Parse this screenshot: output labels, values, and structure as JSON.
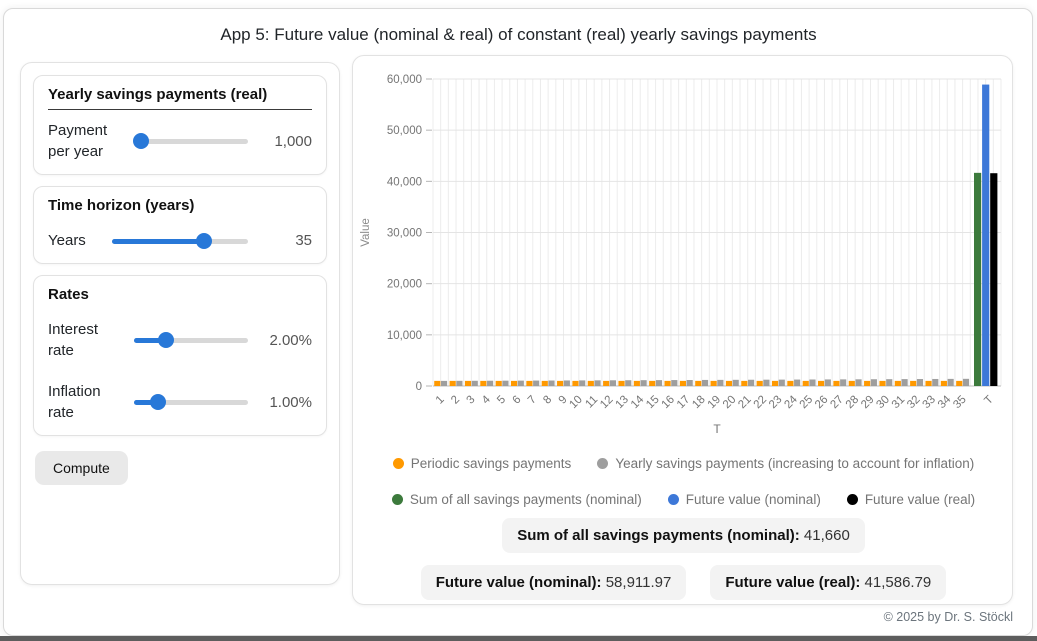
{
  "app": {
    "title": "App 5: Future value (nominal & real) of constant (real) yearly savings payments",
    "footer": "© 2025 by Dr. S. Stöckl"
  },
  "sidebar": {
    "card1": {
      "title": "Yearly savings payments (real)",
      "label": "Payment per year",
      "value": "1,000",
      "pct": 6
    },
    "card2": {
      "title": "Time horizon (years)",
      "label": "Years",
      "value": "35",
      "pct": 68
    },
    "card3": {
      "title": "Rates",
      "rows": [
        {
          "label": "Interest rate",
          "value": "2.00%",
          "pct": 28
        },
        {
          "label": "Inflation rate",
          "value": "1.00%",
          "pct": 21
        }
      ]
    },
    "compute_label": "Compute"
  },
  "chart_data": {
    "type": "bar",
    "title": "",
    "xlabel": "T",
    "ylabel": "Value",
    "ylim": [
      0,
      60000
    ],
    "yticks": [
      0,
      10000,
      20000,
      30000,
      40000,
      50000,
      60000
    ],
    "grid": true,
    "year_categories": [
      1,
      2,
      3,
      4,
      5,
      6,
      7,
      8,
      9,
      10,
      11,
      12,
      13,
      14,
      15,
      16,
      17,
      18,
      19,
      20,
      21,
      22,
      23,
      24,
      25,
      26,
      27,
      28,
      29,
      30,
      31,
      32,
      33,
      34,
      35
    ],
    "t_category": "T",
    "series": [
      {
        "name": "Periodic savings payments",
        "color": "#ff9900",
        "values": [
          1000,
          1000,
          1000,
          1000,
          1000,
          1000,
          1000,
          1000,
          1000,
          1000,
          1000,
          1000,
          1000,
          1000,
          1000,
          1000,
          1000,
          1000,
          1000,
          1000,
          1000,
          1000,
          1000,
          1000,
          1000,
          1000,
          1000,
          1000,
          1000,
          1000,
          1000,
          1000,
          1000,
          1000,
          1000
        ]
      },
      {
        "name": "Yearly savings payments (increasing to account for inflation)",
        "color": "#9e9e9e",
        "values": [
          1000,
          1010,
          1020.1,
          1030.3,
          1040.6,
          1051.01,
          1061.52,
          1072.14,
          1082.86,
          1093.69,
          1104.62,
          1115.67,
          1126.83,
          1138.09,
          1149.47,
          1160.97,
          1172.58,
          1184.3,
          1196.15,
          1208.11,
          1220.19,
          1232.39,
          1244.72,
          1257.16,
          1269.73,
          1282.43,
          1295.26,
          1308.21,
          1321.29,
          1334.5,
          1347.85,
          1361.33,
          1374.94,
          1388.69,
          1402.58
        ]
      }
    ],
    "t_bars": [
      {
        "name": "Sum of all savings payments (nominal)",
        "color": "#3c7a3c",
        "value": 41660
      },
      {
        "name": "Future value (nominal)",
        "color": "#3d78d8",
        "value": 58911.97
      },
      {
        "name": "Future value (real)",
        "color": "#000000",
        "value": 41586.79
      }
    ],
    "legend_position": "bottom"
  },
  "legend": {
    "row1": [
      {
        "label": "Periodic savings payments",
        "color": "#ff9900"
      },
      {
        "label": "Yearly savings payments (increasing to account for inflation)",
        "color": "#9e9e9e"
      }
    ],
    "row2": [
      {
        "label": "Sum of all savings payments (nominal)",
        "color": "#3c7a3c"
      },
      {
        "label": "Future value (nominal)",
        "color": "#3d78d8"
      },
      {
        "label": "Future value (real)",
        "color": "#000000"
      }
    ]
  },
  "summary": {
    "sum_label": "Sum of all savings payments (nominal):",
    "sum_value": "41,660",
    "fv_nominal_label": "Future value (nominal):",
    "fv_nominal_value": "58,911.97",
    "fv_real_label": "Future value (real):",
    "fv_real_value": "41,586.79"
  }
}
